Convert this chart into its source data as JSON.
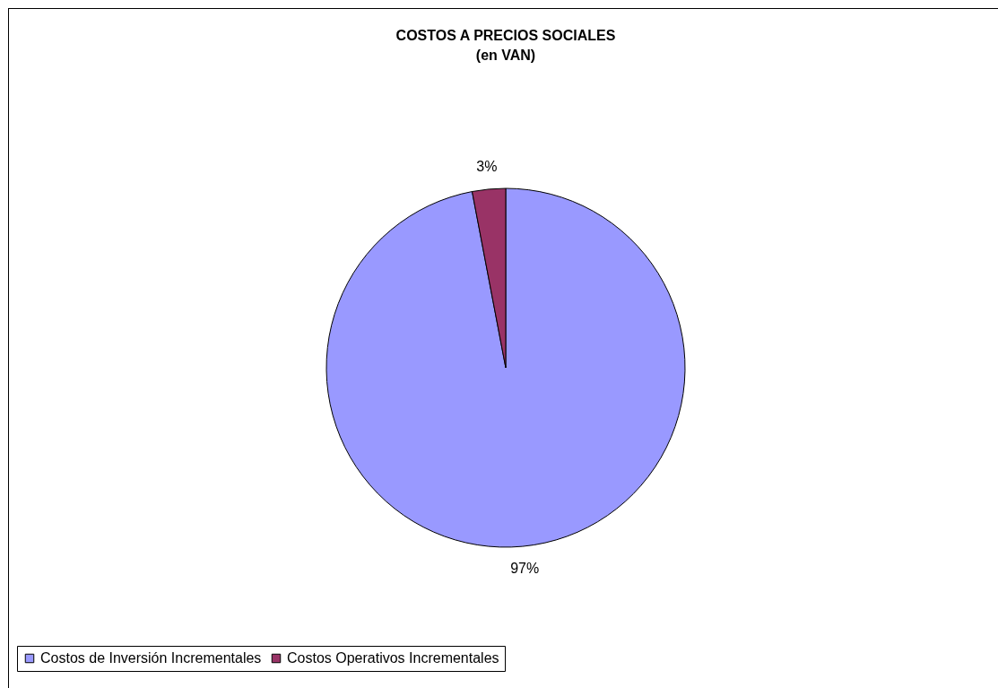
{
  "chart_data": {
    "type": "pie",
    "title": "COSTOS A PRECIOS SOCIALES",
    "subtitle": "(en VAN)",
    "categories": [
      "Costos de Inversión Incrementales",
      "Costos Operativos Incrementales"
    ],
    "values": [
      97,
      3
    ],
    "colors": [
      "#9999ff",
      "#993366"
    ],
    "value_labels": [
      "97%",
      "3%"
    ],
    "legend": "bottom"
  }
}
